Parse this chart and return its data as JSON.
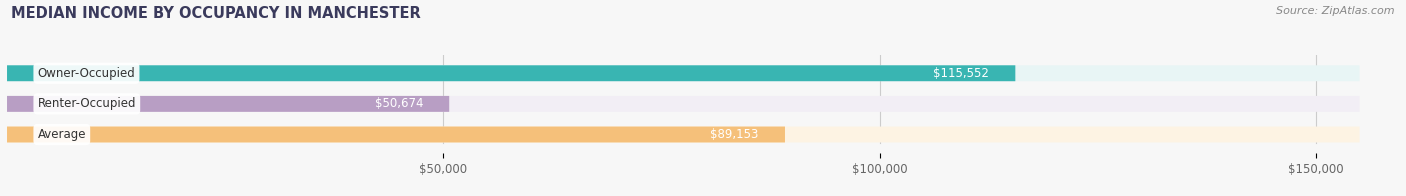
{
  "title": "MEDIAN INCOME BY OCCUPANCY IN MANCHESTER",
  "source": "Source: ZipAtlas.com",
  "categories": [
    "Owner-Occupied",
    "Renter-Occupied",
    "Average"
  ],
  "values": [
    115552,
    50674,
    89153
  ],
  "bar_colors": [
    "#39b5b2",
    "#b89ec4",
    "#f5c07a"
  ],
  "bar_background_colors": [
    "#e8f5f5",
    "#f2eef5",
    "#fdf3e3"
  ],
  "label_values": [
    "$115,552",
    "$50,674",
    "$89,153"
  ],
  "xlabel_ticks": [
    50000,
    100000,
    150000
  ],
  "xlabel_labels": [
    "$50,000",
    "$100,000",
    "$150,000"
  ],
  "xlim": [
    0,
    160000
  ],
  "max_bar_width": 155000,
  "background_color": "#f7f7f7",
  "bar_height": 0.52,
  "title_fontsize": 10.5,
  "source_fontsize": 8,
  "label_fontsize": 8.5,
  "value_fontsize": 8.5,
  "tick_fontsize": 8.5,
  "title_color": "#3a3a5c",
  "source_color": "#888888",
  "tick_color": "#666666",
  "text_color": "#333333"
}
